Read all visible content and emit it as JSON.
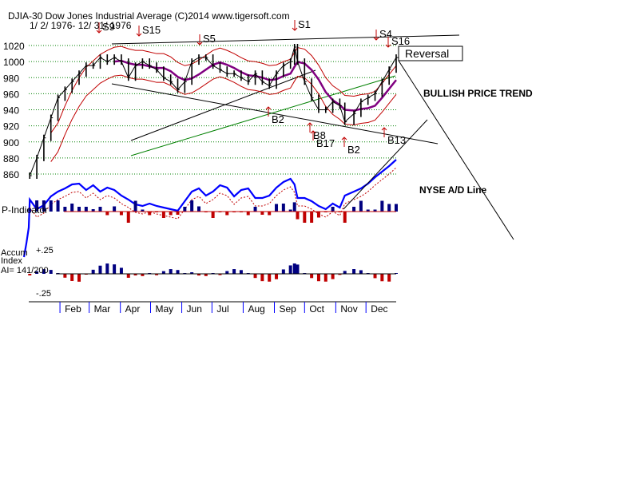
{
  "header": {
    "title": "DJIA-30  Dow Jones Industrial Average   (C)2014 www.tigersoft.com",
    "date_range": "1/ 2/ 1976- 12/ 31/ 1976"
  },
  "chart_data": {
    "type": "line",
    "price_axis": {
      "ticks": [
        "1020",
        "1000",
        "980",
        "960",
        "940",
        "920",
        "900",
        "880",
        "860"
      ],
      "ylim": [
        850,
        1040
      ]
    },
    "x_axis": {
      "months": [
        "Feb",
        "Mar",
        "Apr",
        "May",
        "Jun",
        "Jul",
        "Aug",
        "Sep",
        "Oct",
        "Nov",
        "Dec"
      ]
    },
    "series": [
      {
        "name": "DJIA",
        "x": [
          "1976-01-02",
          "1976-01-09",
          "1976-01-16",
          "1976-01-23",
          "1976-01-30",
          "1976-02-06",
          "1976-02-13",
          "1976-02-20",
          "1976-02-27",
          "1976-03-05",
          "1976-03-12",
          "1976-03-19",
          "1976-03-26",
          "1976-04-02",
          "1976-04-09",
          "1976-04-16",
          "1976-04-23",
          "1976-04-30",
          "1976-05-07",
          "1976-05-14",
          "1976-05-21",
          "1976-05-28",
          "1976-06-04",
          "1976-06-11",
          "1976-06-18",
          "1976-06-25",
          "1976-07-02",
          "1976-07-09",
          "1976-07-16",
          "1976-07-23",
          "1976-07-30",
          "1976-08-06",
          "1976-08-13",
          "1976-08-20",
          "1976-08-27",
          "1976-09-03",
          "1976-09-10",
          "1976-09-17",
          "1976-09-21",
          "1976-09-24",
          "1976-10-01",
          "1976-10-08",
          "1976-10-15",
          "1976-10-22",
          "1976-10-29",
          "1976-11-05",
          "1976-11-10",
          "1976-11-19",
          "1976-11-26",
          "1976-12-03",
          "1976-12-10",
          "1976-12-17",
          "1976-12-24",
          "1976-12-31"
        ],
        "y": [
          858,
          880,
          905,
          930,
          955,
          965,
          975,
          985,
          995,
          995,
          1005,
          1000,
          1005,
          1000,
          980,
          995,
          1000,
          995,
          990,
          980,
          975,
          965,
          975,
          1000,
          1005,
          1005,
          995,
          990,
          985,
          985,
          980,
          975,
          985,
          975,
          970,
          985,
          995,
          1000,
          1018,
          1000,
          975,
          955,
          940,
          940,
          950,
          945,
          925,
          935,
          950,
          955,
          960,
          975,
          990,
          1005
        ]
      }
    ],
    "annotations": [
      "S9",
      "S15",
      "S5",
      "S1",
      "S4",
      "S16",
      "B2",
      "B8",
      "B17",
      "B2",
      "B13"
    ],
    "callouts": {
      "reversal": "Reversal",
      "trend": "BULLISH PRICE TREND",
      "ad_line": "NYSE A/D Line"
    },
    "indicators": {
      "p_label": "P-Indicator",
      "accum_label_1": "Accum",
      "accum_label_2": "Index",
      "ai_value": "AI= 141/200",
      "accum_top": "+.25",
      "accum_bottom": "-.25"
    },
    "colors": {
      "price_bars": "#000000",
      "moving_avg": "#800080",
      "bands": "#c00000",
      "trendline_green": "#008000",
      "ad_line": "#0000ff",
      "positive_hist": "#000080",
      "negative_hist": "#c00000",
      "signal_arrows": "#c00000",
      "gridlines": "#008000"
    }
  }
}
